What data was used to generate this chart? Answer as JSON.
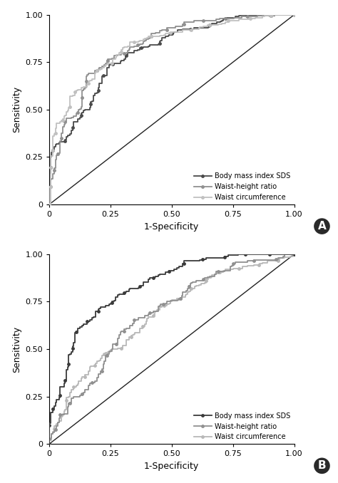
{
  "panel_A": {
    "bmi_color": "#4a4a4a",
    "whr_color": "#909090",
    "wc_color": "#c0c0c0",
    "diagonal_color": "#222222",
    "xlabel": "1-Specificity",
    "ylabel": "Sensitivity",
    "xlim": [
      0,
      1.0
    ],
    "ylim": [
      0,
      1.0
    ],
    "xticks": [
      0,
      0.25,
      0.5,
      0.75,
      1.0
    ],
    "yticks": [
      0,
      0.25,
      0.5,
      0.75,
      1.0
    ],
    "legend_labels": [
      "Body mass index SDS",
      "Waist-height ratio",
      "Waist circumference"
    ],
    "seed_bmi": 11,
    "seed_whr": 22,
    "seed_wc": 33,
    "n_points": 500,
    "bmi_auc": 0.8,
    "whr_auc": 0.84,
    "wc_auc": 0.87
  },
  "panel_B": {
    "bmi_color": "#3a3a3a",
    "whr_color": "#909090",
    "wc_color": "#b8b8b8",
    "diagonal_color": "#222222",
    "xlabel": "1-Specificity",
    "ylabel": "Sensitivity",
    "xlim": [
      0,
      1.0
    ],
    "ylim": [
      0,
      1.0
    ],
    "xticks": [
      0,
      0.25,
      0.5,
      0.75,
      1.0
    ],
    "yticks": [
      0,
      0.25,
      0.5,
      0.75,
      1.0
    ],
    "legend_labels": [
      "Body mass index SDS",
      "Waist-height ratio",
      "Waist circumference"
    ],
    "seed_bmi": 77,
    "seed_whr": 88,
    "seed_wc": 99,
    "n_points": 500,
    "bmi_auc": 0.82,
    "whr_auc": 0.71,
    "wc_auc": 0.69
  },
  "marker": "o",
  "markersize": 2.5,
  "linewidth": 1.3,
  "legend_fontsize": 7,
  "tick_fontsize": 8,
  "label_fontsize": 9,
  "panel_label_fontsize": 11,
  "background_color": "#ffffff"
}
